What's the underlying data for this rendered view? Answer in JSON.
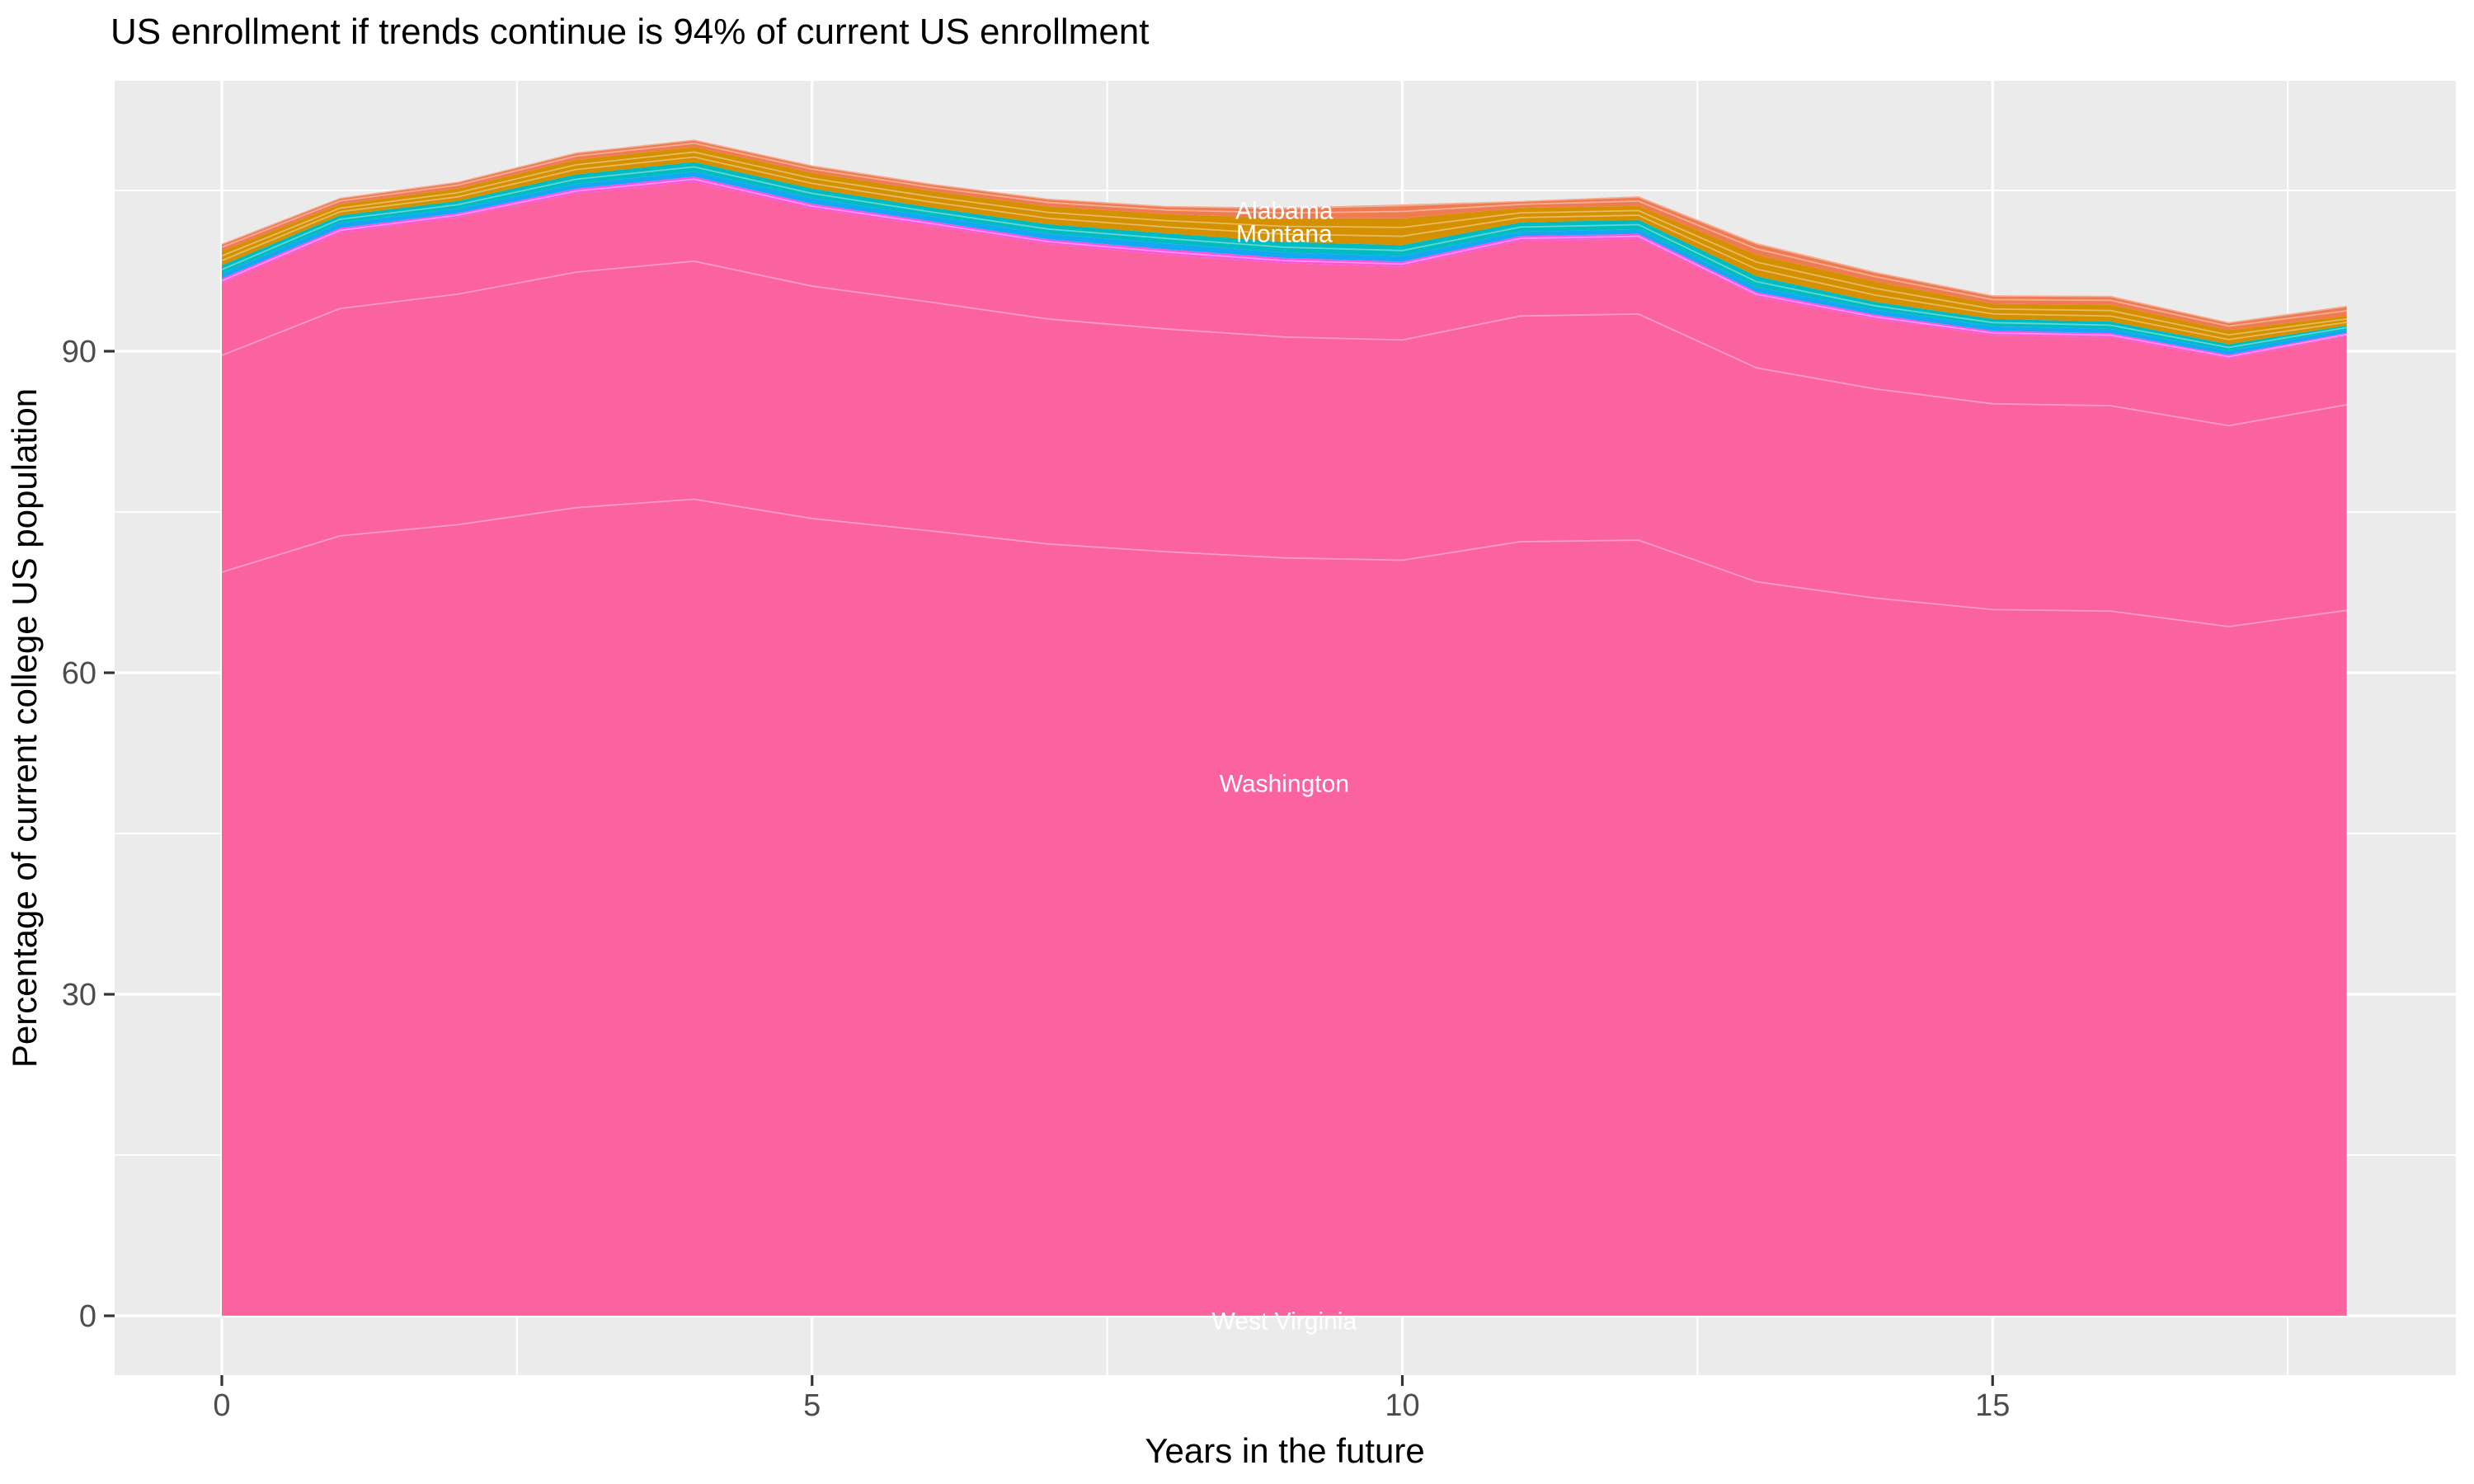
{
  "title": "US enrollment if trends continue is 94% of current US enrollment",
  "chart_data": {
    "type": "area",
    "stacked": true,
    "title": "US enrollment if trends continue is 94% of current US enrollment",
    "xlabel": "Years in the future",
    "ylabel": "Percentage of current college US population",
    "legend": "none",
    "grid": "on",
    "panel_color": "#EBEBEB",
    "grid_color": "#FFFFFF",
    "tick_text_color": "#4D4D4D",
    "tick_mark_color": "#333333",
    "area_label_color": "#FFFFFF",
    "xlim": [
      -0.91,
      18.92
    ],
    "ylim": [
      -5.5,
      115.3
    ],
    "x_ticks": [
      {
        "v": 0,
        "label": "0"
      },
      {
        "v": 5,
        "label": "5"
      },
      {
        "v": 10,
        "label": "10"
      },
      {
        "v": 15,
        "label": "15"
      }
    ],
    "y_ticks": [
      {
        "v": 0,
        "label": "0"
      },
      {
        "v": 30,
        "label": "30"
      },
      {
        "v": 60,
        "label": "60"
      },
      {
        "v": 90,
        "label": "90"
      }
    ],
    "x_minor": [
      2.5,
      7.5,
      12.5,
      17.5
    ],
    "y_minor": [
      15,
      45,
      75,
      105
    ],
    "x": [
      0,
      1,
      2,
      3,
      4,
      5,
      6,
      7,
      8,
      9,
      10,
      11,
      12,
      13,
      14,
      15,
      16,
      17,
      18
    ],
    "series": [
      {
        "id": "west-virginia-band",
        "label": "West Virginia",
        "color": "#FF6FB5",
        "values": [
          0.05,
          0.05,
          0.05,
          0.05,
          0.05,
          0.05,
          0.05,
          0.05,
          0.05,
          0.05,
          0.05,
          0.05,
          0.05,
          0.05,
          0.05,
          0.05,
          0.05,
          0.05,
          0.05
        ]
      },
      {
        "id": "washington-band",
        "label": "Washington",
        "color": "#FA62A0",
        "values": [
          96.3,
          101.0,
          102.45,
          104.65,
          105.75,
          103.25,
          101.65,
          99.95,
          98.95,
          98.15,
          97.85,
          100.25,
          100.45,
          95.05,
          92.95,
          91.45,
          91.25,
          89.25,
          91.35
        ]
      },
      {
        "id": "magenta-band",
        "label": "",
        "color": "#FB53DE",
        "values": [
          0.43,
          0.44,
          0.38,
          0.46,
          0.49,
          0.46,
          0.44,
          0.44,
          0.51,
          0.5,
          0.46,
          0.44,
          0.44,
          0.42,
          0.42,
          0.4,
          0.38,
          0.36,
          0.31
        ]
      },
      {
        "id": "blue-band",
        "label": "",
        "color": "#14A7F6",
        "values": [
          0.44,
          0.46,
          0.43,
          0.44,
          0.46,
          0.51,
          0.46,
          0.51,
          0.54,
          0.5,
          0.52,
          0.4,
          0.42,
          0.46,
          0.45,
          0.42,
          0.4,
          0.38,
          0.31
        ]
      },
      {
        "id": "teal-band",
        "label": "Montana",
        "color": "#00BCC1",
        "values": [
          0.79,
          0.72,
          0.72,
          0.9,
          0.9,
          0.9,
          0.82,
          0.9,
          0.95,
          1.0,
          1.02,
          0.88,
          0.9,
          1.02,
          0.75,
          0.7,
          0.69,
          0.62,
          0.38
        ]
      },
      {
        "id": "gold-band",
        "label": "",
        "color": "#D59000",
        "values": [
          1.34,
          1.03,
          1.15,
          1.36,
          1.41,
          1.46,
          1.54,
          1.67,
          1.79,
          2.2,
          2.5,
          1.35,
          1.3,
          2.0,
          1.9,
          1.4,
          1.55,
          1.3,
          0.92
        ]
      },
      {
        "id": "salmon-band",
        "label": "Alabama",
        "color": "#EF7B52",
        "values": [
          0.69,
          0.62,
          0.64,
          0.69,
          0.69,
          0.72,
          0.69,
          0.72,
          0.77,
          1.0,
          1.28,
          0.66,
          0.9,
          1.1,
          0.9,
          0.8,
          0.85,
          0.75,
          0.92
        ]
      }
    ],
    "annotations": [
      {
        "text": "Alabama",
        "x": 9,
        "v": 103.15
      },
      {
        "text": "Montana",
        "x": 9,
        "v": 101.0
      },
      {
        "text": "Washington",
        "x": 9,
        "v": 49.7
      },
      {
        "text": "West Virginia",
        "x": 9,
        "v": -0.45
      }
    ]
  }
}
